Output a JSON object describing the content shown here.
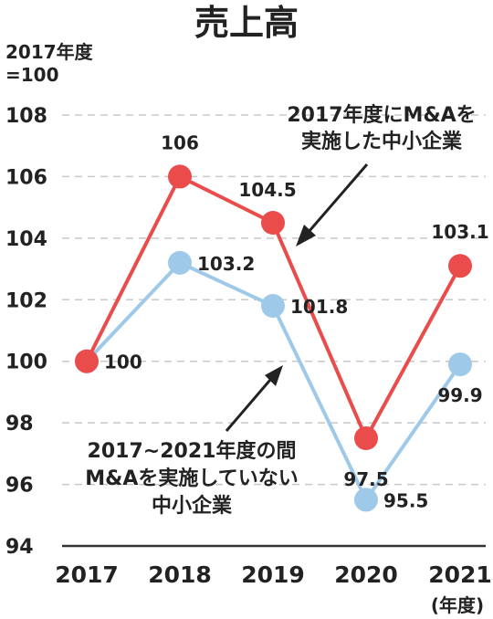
{
  "chart_data": {
    "type": "line",
    "title": "売上高",
    "ylabel_lines": [
      "2017年度",
      "=100"
    ],
    "x_unit": "(年度)",
    "categories": [
      "2017",
      "2018",
      "2019",
      "2020",
      "2021"
    ],
    "ylim": [
      94,
      108
    ],
    "yticks": [
      94,
      96,
      98,
      100,
      102,
      104,
      106,
      108
    ],
    "grid": true,
    "series": [
      {
        "values": [
          100,
          106,
          104.5,
          97.5,
          103.1
        ],
        "labels": [
          "",
          "106",
          "104.5",
          "97.5",
          "103.1"
        ],
        "color": "#ea4c4c"
      },
      {
        "values": [
          100,
          103.2,
          101.8,
          95.5,
          99.9
        ],
        "labels": [
          "100",
          "103.2",
          "101.8",
          "95.5",
          "99.9"
        ],
        "color": "#9ec9e8"
      }
    ],
    "annotations": [
      {
        "lines": [
          "2017年度にM&Aを",
          "実施した中小企業"
        ]
      },
      {
        "lines": [
          "2017~2021年度の間",
          "M&Aを実施していない",
          "中小企業"
        ]
      }
    ],
    "axis_color": "#333333",
    "grid_color": "#c8c8c8"
  }
}
